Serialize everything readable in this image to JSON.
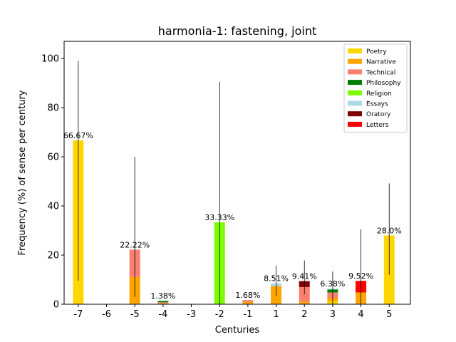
{
  "chart_data": {
    "type": "bar",
    "stacked": true,
    "title": "harmonia-1: fastening, joint",
    "xlabel": "Centuries",
    "ylabel": "Frequency (%) of sense per century",
    "ylim": [
      0,
      107
    ],
    "yticks": [
      0,
      20,
      40,
      60,
      80,
      100
    ],
    "grid": false,
    "legend_position": "top-right",
    "categories": [
      "-7",
      "-6",
      "-5",
      "-4",
      "-3",
      "-2",
      "-1",
      "1",
      "2",
      "3",
      "4",
      "5"
    ],
    "series": [
      {
        "name": "Poetry",
        "color": "#FFD700",
        "values": [
          66.67,
          0,
          0,
          0,
          0,
          0,
          0,
          0,
          0,
          1.2,
          0,
          28.0
        ]
      },
      {
        "name": "Narrative",
        "color": "#FFA500",
        "values": [
          0,
          0,
          11.11,
          0.4,
          0,
          0,
          1.0,
          7.4,
          1.0,
          1.4,
          4.8,
          0
        ]
      },
      {
        "name": "Technical",
        "color": "#FA8072",
        "values": [
          0,
          0,
          11.11,
          0.4,
          0,
          0,
          0.68,
          0,
          6.0,
          2.2,
          0,
          0
        ]
      },
      {
        "name": "Philosophy",
        "color": "#008000",
        "values": [
          0,
          0,
          0,
          0.58,
          0,
          0,
          0,
          0,
          0,
          1.2,
          0,
          0
        ]
      },
      {
        "name": "Religion",
        "color": "#7CFC00",
        "values": [
          0,
          0,
          0,
          0,
          0,
          33.33,
          0,
          0,
          0,
          0,
          0,
          0
        ]
      },
      {
        "name": "Essays",
        "color": "#ADD8E6",
        "values": [
          0,
          0,
          0,
          0,
          0,
          0,
          0,
          1.11,
          0,
          0.38,
          0,
          0
        ]
      },
      {
        "name": "Oratory",
        "color": "#800000",
        "values": [
          0,
          0,
          0,
          0,
          0,
          0,
          0,
          0,
          2.41,
          0,
          0,
          0
        ]
      },
      {
        "name": "Letters",
        "color": "#FF0000",
        "values": [
          0,
          0,
          0,
          0,
          0,
          0,
          0,
          0,
          0,
          0,
          4.72,
          0
        ]
      }
    ],
    "totals": [
      66.67,
      0,
      22.22,
      1.38,
      0,
      33.33,
      1.68,
      8.51,
      9.41,
      6.38,
      9.52,
      28.0
    ],
    "data_labels": [
      "66.67%",
      "",
      "22.22%",
      "1.38%",
      "",
      "33.33%",
      "1.68%",
      "8.51%",
      "9.41%",
      "6.38%",
      "9.52%",
      "28.0%"
    ],
    "error_bars": [
      [
        9.5,
        99
      ],
      null,
      [
        3,
        60
      ],
      null,
      null,
      [
        0,
        90.5
      ],
      null,
      [
        3.5,
        15.8
      ],
      [
        4,
        17.8
      ],
      [
        0,
        13.3
      ],
      [
        0,
        30.5
      ],
      [
        12,
        49.2
      ]
    ]
  }
}
